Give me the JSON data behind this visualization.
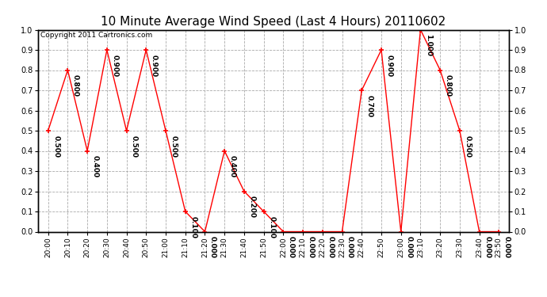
{
  "title": "10 Minute Average Wind Speed (Last 4 Hours) 20110602",
  "copyright_text": "Copyright 2011 Cartronics.com",
  "x_labels": [
    "20:00",
    "20:10",
    "20:20",
    "20:30",
    "20:40",
    "20:50",
    "21:00",
    "21:10",
    "21:20",
    "21:30",
    "21:40",
    "21:50",
    "22:00",
    "22:10",
    "22:20",
    "22:30",
    "22:40",
    "22:50",
    "23:00",
    "23:10",
    "23:20",
    "23:30",
    "23:40",
    "23:50"
  ],
  "y_values": [
    0.5,
    0.8,
    0.4,
    0.9,
    0.5,
    0.9,
    0.5,
    0.1,
    0.0,
    0.4,
    0.2,
    0.1,
    0.0,
    0.0,
    0.0,
    0.0,
    0.7,
    0.9,
    0.0,
    1.0,
    0.8,
    0.5,
    0.0,
    0.0
  ],
  "line_color": "#ff0000",
  "marker_color": "#ff0000",
  "bg_color": "#ffffff",
  "grid_color": "#aaaaaa",
  "title_fontsize": 11,
  "label_fontsize": 6.5,
  "copyright_fontsize": 6.5,
  "ylim": [
    0.0,
    1.0
  ],
  "yticks": [
    0.0,
    0.1,
    0.2,
    0.3,
    0.4,
    0.5,
    0.6,
    0.7,
    0.8,
    0.9,
    1.0
  ]
}
